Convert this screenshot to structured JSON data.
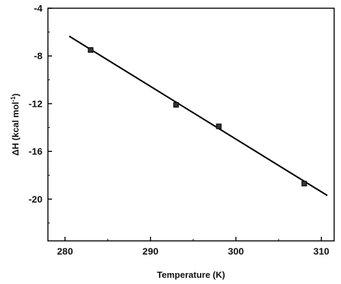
{
  "chart_data": {
    "type": "scatter",
    "title": "",
    "xlabel": "Temperature (K)",
    "ylabel_main": "ΔH (kcal mol",
    "ylabel_sup": "-1",
    "ylabel_close": ")",
    "xlim": [
      278,
      311.5
    ],
    "ylim": [
      -23.5,
      -4
    ],
    "xticks": [
      280,
      290,
      300,
      310
    ],
    "yticks": [
      -4,
      -8,
      -12,
      -16,
      -20
    ],
    "grid": false,
    "points": [
      {
        "x": 283,
        "y": -7.5,
        "err": 0.2
      },
      {
        "x": 293,
        "y": -12.1,
        "err": 0.15
      },
      {
        "x": 298,
        "y": -13.9,
        "err": 0.15
      },
      {
        "x": 308,
        "y": -18.7,
        "err": 0.15
      }
    ],
    "fit_line": {
      "x": [
        280.5,
        310.7
      ],
      "y": [
        -6.35,
        -19.7
      ]
    },
    "colors": {
      "marker": "#333333",
      "line": "#000000",
      "axis": "#000000"
    }
  }
}
